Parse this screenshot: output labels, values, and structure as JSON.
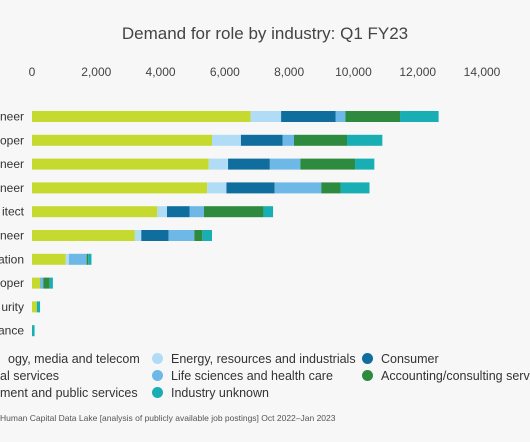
{
  "chart_data": {
    "type": "bar",
    "orientation": "horizontal",
    "stacked": true,
    "title": "Demand for role by industry: Q1 FY23",
    "xlim": [
      0,
      14000
    ],
    "x_ticks": [
      "0",
      "2,000",
      "4,000",
      "6,000",
      "8,000",
      "10,000",
      "12,000",
      "14,000"
    ],
    "grid": false,
    "legend_position": "bottom",
    "categories": [
      "neer",
      "oper",
      "neer",
      "neer",
      "itect",
      "neer",
      "ation",
      "oper",
      "urity",
      "ance"
    ],
    "series": [
      {
        "name": "ogy, media and telecom",
        "color": "#c5d92e",
        "values": [
          6800,
          5600,
          5500,
          5450,
          3900,
          3200,
          1050,
          250,
          150,
          0
        ]
      },
      {
        "name": "al services",
        "color": "#e0e887",
        "values": [
          0,
          0,
          0,
          0,
          0,
          0,
          0,
          0,
          0,
          0
        ]
      },
      {
        "name": "ment and public services",
        "color": "#eaf0b4",
        "values": [
          0,
          0,
          0,
          0,
          0,
          0,
          0,
          0,
          0,
          0
        ]
      },
      {
        "name": "Energy, resources and industrials",
        "color": "#b1dcf6",
        "values": [
          950,
          900,
          600,
          600,
          300,
          200,
          100,
          0,
          0,
          0
        ]
      },
      {
        "name": "Consumer",
        "color": "#0f6e9e",
        "values": [
          1700,
          1300,
          1300,
          1500,
          700,
          850,
          0,
          0,
          0,
          0
        ]
      },
      {
        "name": "Life sciences and health care",
        "color": "#6db8e6",
        "values": [
          300,
          350,
          950,
          1450,
          450,
          800,
          550,
          100,
          0,
          0
        ]
      },
      {
        "name": "Accounting/consulting services",
        "color": "#2e8a3e",
        "values": [
          1700,
          1650,
          1700,
          600,
          1850,
          250,
          50,
          200,
          0,
          0
        ]
      },
      {
        "name": "Industry unknown",
        "color": "#18aeb3",
        "values": [
          1200,
          1100,
          600,
          900,
          300,
          300,
          100,
          100,
          100,
          80
        ]
      }
    ]
  },
  "legend_rows": [
    [
      "ogy, media and telecom",
      "Energy, resources and industrials",
      "Consumer"
    ],
    [
      "al services",
      "Life sciences and health care",
      "Accounting/consulting servic"
    ],
    [
      "ment and public services",
      "Industry unknown",
      ""
    ]
  ],
  "source": "Human Capital Data Lake [analysis of publicly available job postings] Oct 2022–Jan 2023"
}
